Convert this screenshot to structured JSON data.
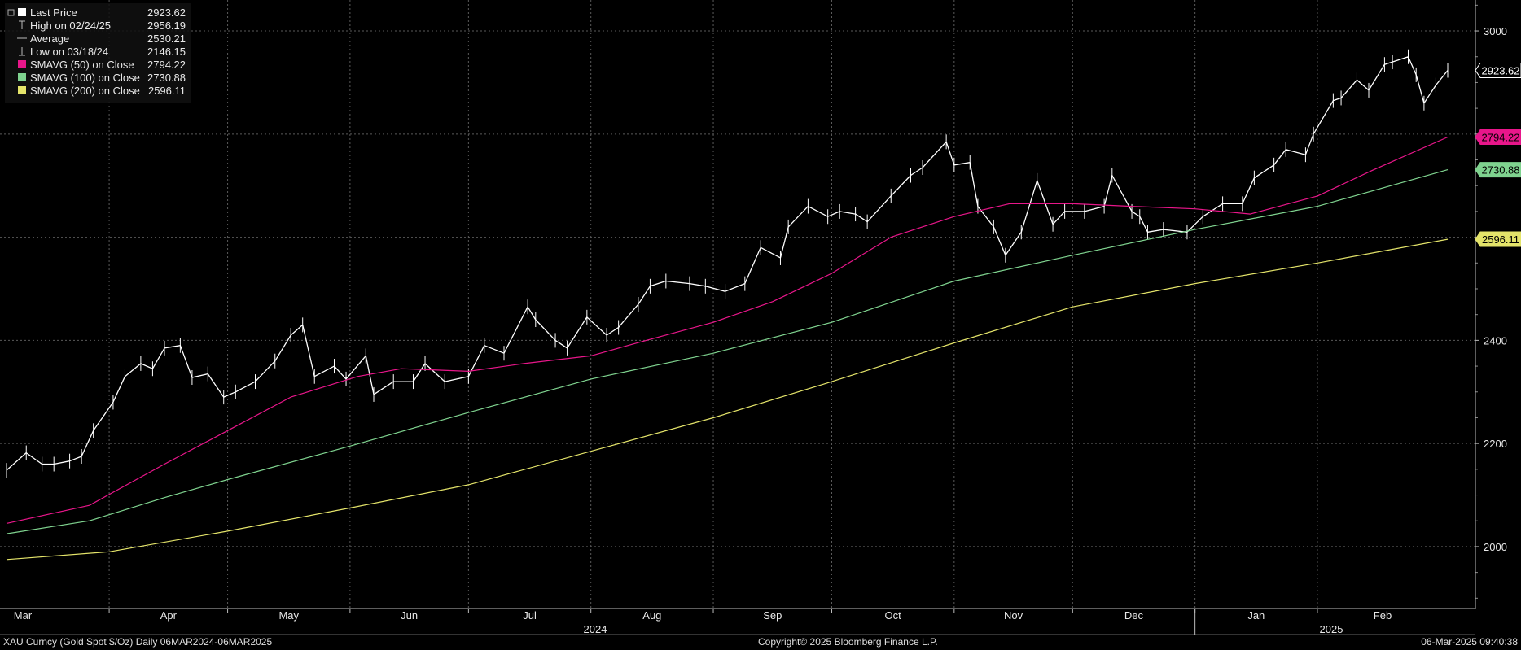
{
  "legend": [
    {
      "marker": "square-white",
      "label": "Last Price",
      "value": "2923.62"
    },
    {
      "marker": "high-icon",
      "label": "High on 02/24/25",
      "value": "2956.19"
    },
    {
      "marker": "average-icon",
      "label": "Average",
      "value": "2530.21"
    },
    {
      "marker": "low-icon",
      "label": "Low on 03/18/24",
      "value": "2146.15"
    },
    {
      "marker": "square-magenta",
      "label": "SMAVG (50)  on Close",
      "value": "2794.22"
    },
    {
      "marker": "square-green",
      "label": "SMAVG (100)  on Close",
      "value": "2730.88"
    },
    {
      "marker": "square-yellow",
      "label": "SMAVG (200)  on Close",
      "value": "2596.11"
    }
  ],
  "footer": {
    "left": "XAU Curncy (Gold Spot  $/Oz)  Daily 06MAR2024-06MAR2025",
    "center": "Copyright© 2025 Bloomberg Finance L.P.",
    "right": "06-Mar-2025 09:40:38"
  },
  "colors": {
    "background": "#000000",
    "grid": "#5a5a5a",
    "price": "#ffffff",
    "sma50": "#e8168a",
    "sma100": "#7fd38f",
    "sma200": "#e4e46a"
  },
  "chart_data": {
    "type": "line",
    "ylim": [
      1880,
      3060
    ],
    "yticks": [
      2000,
      2200,
      2400,
      2600,
      2800,
      3000
    ],
    "ytick_labels": [
      "2000",
      "2200",
      "2400",
      "",
      "",
      "3000"
    ],
    "x_range": [
      "2024-03-06",
      "2025-03-06"
    ],
    "months": [
      {
        "label": "Mar",
        "date": "2024-03-01"
      },
      {
        "label": "Apr",
        "date": "2024-04-01"
      },
      {
        "label": "May",
        "date": "2024-05-01"
      },
      {
        "label": "Jun",
        "date": "2024-06-01"
      },
      {
        "label": "Jul",
        "date": "2024-07-01"
      },
      {
        "label": "Aug",
        "date": "2024-08-01"
      },
      {
        "label": "Sep",
        "date": "2024-09-01"
      },
      {
        "label": "Oct",
        "date": "2024-10-01"
      },
      {
        "label": "Nov",
        "date": "2024-11-01"
      },
      {
        "label": "Dec",
        "date": "2024-12-01"
      },
      {
        "label": "Jan",
        "date": "2025-01-01"
      },
      {
        "label": "Feb",
        "date": "2025-02-01"
      }
    ],
    "years": [
      {
        "label": "2024",
        "date": "2024-07-15"
      },
      {
        "label": "2025",
        "date": "2025-01-15"
      }
    ],
    "year_separator": "2025-01-01",
    "series": [
      {
        "name": "Last Price",
        "key": "price",
        "points": [
          [
            "2024-03-06",
            2148
          ],
          [
            "2024-03-11",
            2182
          ],
          [
            "2024-03-15",
            2160
          ],
          [
            "2024-03-18",
            2160
          ],
          [
            "2024-03-22",
            2166
          ],
          [
            "2024-03-25",
            2175
          ],
          [
            "2024-03-28",
            2225
          ],
          [
            "2024-04-02",
            2280
          ],
          [
            "2024-04-05",
            2330
          ],
          [
            "2024-04-09",
            2355
          ],
          [
            "2024-04-12",
            2345
          ],
          [
            "2024-04-15",
            2385
          ],
          [
            "2024-04-19",
            2390
          ],
          [
            "2024-04-22",
            2328
          ],
          [
            "2024-04-26",
            2335
          ],
          [
            "2024-04-30",
            2290
          ],
          [
            "2024-05-03",
            2300
          ],
          [
            "2024-05-08",
            2320
          ],
          [
            "2024-05-13",
            2360
          ],
          [
            "2024-05-17",
            2410
          ],
          [
            "2024-05-20",
            2430
          ],
          [
            "2024-05-23",
            2330
          ],
          [
            "2024-05-28",
            2350
          ],
          [
            "2024-05-31",
            2325
          ],
          [
            "2024-06-05",
            2370
          ],
          [
            "2024-06-07",
            2295
          ],
          [
            "2024-06-12",
            2320
          ],
          [
            "2024-06-17",
            2320
          ],
          [
            "2024-06-20",
            2355
          ],
          [
            "2024-06-25",
            2320
          ],
          [
            "2024-07-01",
            2330
          ],
          [
            "2024-07-05",
            2390
          ],
          [
            "2024-07-10",
            2375
          ],
          [
            "2024-07-16",
            2465
          ],
          [
            "2024-07-18",
            2440
          ],
          [
            "2024-07-23",
            2400
          ],
          [
            "2024-07-26",
            2385
          ],
          [
            "2024-07-31",
            2445
          ],
          [
            "2024-08-05",
            2410
          ],
          [
            "2024-08-08",
            2425
          ],
          [
            "2024-08-13",
            2470
          ],
          [
            "2024-08-16",
            2505
          ],
          [
            "2024-08-20",
            2515
          ],
          [
            "2024-08-26",
            2510
          ],
          [
            "2024-08-30",
            2505
          ],
          [
            "2024-09-04",
            2495
          ],
          [
            "2024-09-09",
            2510
          ],
          [
            "2024-09-13",
            2580
          ],
          [
            "2024-09-18",
            2560
          ],
          [
            "2024-09-20",
            2620
          ],
          [
            "2024-09-25",
            2660
          ],
          [
            "2024-09-30",
            2640
          ],
          [
            "2024-10-03",
            2650
          ],
          [
            "2024-10-07",
            2645
          ],
          [
            "2024-10-10",
            2630
          ],
          [
            "2024-10-16",
            2680
          ],
          [
            "2024-10-21",
            2720
          ],
          [
            "2024-10-24",
            2735
          ],
          [
            "2024-10-30",
            2785
          ],
          [
            "2024-11-01",
            2740
          ],
          [
            "2024-11-05",
            2745
          ],
          [
            "2024-11-07",
            2660
          ],
          [
            "2024-11-11",
            2620
          ],
          [
            "2024-11-14",
            2565
          ],
          [
            "2024-11-18",
            2610
          ],
          [
            "2024-11-22",
            2710
          ],
          [
            "2024-11-26",
            2625
          ],
          [
            "2024-11-29",
            2650
          ],
          [
            "2024-12-04",
            2650
          ],
          [
            "2024-12-09",
            2660
          ],
          [
            "2024-12-11",
            2720
          ],
          [
            "2024-12-16",
            2650
          ],
          [
            "2024-12-18",
            2640
          ],
          [
            "2024-12-20",
            2610
          ],
          [
            "2024-12-24",
            2615
          ],
          [
            "2024-12-30",
            2610
          ],
          [
            "2025-01-03",
            2640
          ],
          [
            "2025-01-08",
            2665
          ],
          [
            "2025-01-13",
            2665
          ],
          [
            "2025-01-16",
            2715
          ],
          [
            "2025-01-21",
            2740
          ],
          [
            "2025-01-24",
            2770
          ],
          [
            "2025-01-29",
            2760
          ],
          [
            "2025-01-31",
            2800
          ],
          [
            "2025-02-05",
            2865
          ],
          [
            "2025-02-07",
            2870
          ],
          [
            "2025-02-11",
            2905
          ],
          [
            "2025-02-14",
            2885
          ],
          [
            "2025-02-18",
            2935
          ],
          [
            "2025-02-20",
            2940
          ],
          [
            "2025-02-24",
            2950
          ],
          [
            "2025-02-26",
            2915
          ],
          [
            "2025-02-28",
            2860
          ],
          [
            "2025-03-03",
            2895
          ],
          [
            "2025-03-06",
            2923.62
          ]
        ]
      },
      {
        "name": "SMAVG (50)  on Close",
        "key": "sma50",
        "points": [
          [
            "2024-03-06",
            2045
          ],
          [
            "2024-03-27",
            2080
          ],
          [
            "2024-04-15",
            2160
          ],
          [
            "2024-05-01",
            2225
          ],
          [
            "2024-05-17",
            2290
          ],
          [
            "2024-06-03",
            2330
          ],
          [
            "2024-06-14",
            2345
          ],
          [
            "2024-07-01",
            2340
          ],
          [
            "2024-07-15",
            2355
          ],
          [
            "2024-08-01",
            2370
          ],
          [
            "2024-08-15",
            2400
          ],
          [
            "2024-09-01",
            2435
          ],
          [
            "2024-09-16",
            2475
          ],
          [
            "2024-10-01",
            2530
          ],
          [
            "2024-10-16",
            2600
          ],
          [
            "2024-11-01",
            2640
          ],
          [
            "2024-11-15",
            2665
          ],
          [
            "2024-12-01",
            2665
          ],
          [
            "2024-12-16",
            2660
          ],
          [
            "2025-01-01",
            2655
          ],
          [
            "2025-01-15",
            2645
          ],
          [
            "2025-02-01",
            2680
          ],
          [
            "2025-02-15",
            2730
          ],
          [
            "2025-03-06",
            2794.22
          ]
        ]
      },
      {
        "name": "SMAVG (100)  on Close",
        "key": "sma100",
        "points": [
          [
            "2024-03-06",
            2025
          ],
          [
            "2024-03-27",
            2050
          ],
          [
            "2024-04-15",
            2095
          ],
          [
            "2024-05-01",
            2130
          ],
          [
            "2024-06-01",
            2195
          ],
          [
            "2024-07-01",
            2260
          ],
          [
            "2024-08-01",
            2325
          ],
          [
            "2024-09-01",
            2375
          ],
          [
            "2024-10-01",
            2435
          ],
          [
            "2024-11-01",
            2515
          ],
          [
            "2024-12-01",
            2565
          ],
          [
            "2025-01-01",
            2615
          ],
          [
            "2025-02-01",
            2660
          ],
          [
            "2025-03-06",
            2730.88
          ]
        ]
      },
      {
        "name": "SMAVG (200)  on Close",
        "key": "sma200",
        "points": [
          [
            "2024-03-06",
            1975
          ],
          [
            "2024-04-01",
            1990
          ],
          [
            "2024-05-01",
            2030
          ],
          [
            "2024-06-01",
            2075
          ],
          [
            "2024-07-01",
            2120
          ],
          [
            "2024-08-01",
            2185
          ],
          [
            "2024-09-01",
            2250
          ],
          [
            "2024-10-01",
            2320
          ],
          [
            "2024-11-01",
            2395
          ],
          [
            "2024-12-01",
            2465
          ],
          [
            "2025-01-01",
            2510
          ],
          [
            "2025-02-01",
            2550
          ],
          [
            "2025-03-06",
            2596.11
          ]
        ]
      }
    ],
    "end_labels": [
      {
        "key": "price",
        "value": "2923.62",
        "y": 2923.62
      },
      {
        "key": "sma50",
        "value": "2794.22",
        "y": 2794.22
      },
      {
        "key": "sma100",
        "value": "2730.88",
        "y": 2730.88
      },
      {
        "key": "sma200",
        "value": "2596.11",
        "y": 2596.11
      }
    ]
  }
}
